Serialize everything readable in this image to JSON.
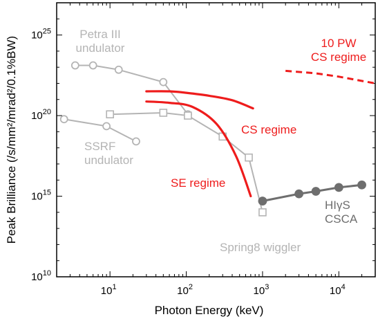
{
  "colors": {
    "gray": "#b4b4b4",
    "dark": "#6e6e6e",
    "red": "#ee1c1c",
    "axis": "#000000"
  },
  "chart_data": {
    "type": "line",
    "xlabel": "Photon Energy (keV)",
    "ylabel": "Peak Brilliance (/s/mm²/mrad²/0.1%BW)",
    "x_scale": "log",
    "y_scale": "log",
    "xlim": [
      2,
      30000
    ],
    "ylim": [
      10000000000.0,
      1e+27
    ],
    "x_ticks": [
      {
        "value": 10,
        "base": "10",
        "exp": "1"
      },
      {
        "value": 100,
        "base": "10",
        "exp": "2"
      },
      {
        "value": 1000,
        "base": "10",
        "exp": "3"
      },
      {
        "value": 10000,
        "base": "10",
        "exp": "4"
      }
    ],
    "y_ticks": [
      {
        "value": 10000000000.0,
        "base": "10",
        "exp": "10"
      },
      {
        "value": 1000000000000000.0,
        "base": "10",
        "exp": "15"
      },
      {
        "value": 1e+20,
        "base": "10",
        "exp": "20"
      },
      {
        "value": 1e+25,
        "base": "10",
        "exp": "25"
      }
    ],
    "grid": false,
    "series": [
      {
        "name": "Petra III undulator",
        "style": "gray-circle",
        "x": [
          3.5,
          6,
          13,
          50,
          105
        ],
        "y": [
          1.3e+23,
          1.3e+23,
          7e+22,
          1.2e+22,
          1.2e+20
        ]
      },
      {
        "name": "SSRF undulator",
        "style": "gray-circle",
        "x": [
          2.5,
          9,
          22
        ],
        "y": [
          6e+19,
          2.2e+19,
          2.5e+18
        ]
      },
      {
        "name": "Spring8 wiggler",
        "style": "gray-square",
        "x": [
          10,
          50,
          105,
          300,
          660,
          1000
        ],
        "y": [
          1.2e+20,
          1.5e+20,
          1e+20,
          5e+18,
          2.5e+17,
          100000000000000.0
        ]
      },
      {
        "name": "HIγS CSCA",
        "style": "dark-circle",
        "x": [
          1000,
          3000,
          5000,
          10000,
          20000
        ],
        "y": [
          500000000000000.0,
          1400000000000000.0,
          2000000000000000.0,
          3500000000000000.0,
          5000000000000000.0
        ]
      },
      {
        "name": "CS regime",
        "style": "red-line",
        "x": [
          30,
          60,
          100,
          200,
          400,
          750
        ],
        "y": [
          3.2e+21,
          3.2e+21,
          2.6e+21,
          1.7e+21,
          9e+20,
          2.8e+20
        ]
      },
      {
        "name": "SE regime",
        "style": "red-line",
        "x": [
          30,
          60,
          120,
          250,
          450,
          700
        ],
        "y": [
          7.5e+20,
          6.2e+20,
          3.5e+20,
          3e+19,
          3e+17,
          1000000000000000.0
        ]
      },
      {
        "name": "10 PW CS regime",
        "style": "red-dashed",
        "x": [
          2000,
          5000,
          10000,
          30000
        ],
        "y": [
          6e+22,
          4.2e+22,
          2.6e+22,
          1e+22
        ]
      }
    ],
    "annotations": [
      {
        "id": "petra",
        "lines": [
          "Petra III",
          "undulator"
        ],
        "color_key": "gray"
      },
      {
        "id": "ssrf",
        "lines": [
          "SSRF",
          "undulator"
        ],
        "color_key": "gray"
      },
      {
        "id": "spring8",
        "lines": [
          "Spring8 wiggler"
        ],
        "color_key": "gray"
      },
      {
        "id": "higs",
        "lines": [
          "HIγS",
          "CSCA"
        ],
        "color_key": "dark"
      },
      {
        "id": "cs",
        "lines": [
          "CS regime"
        ],
        "color_key": "red"
      },
      {
        "id": "se",
        "lines": [
          "SE regime"
        ],
        "color_key": "red"
      },
      {
        "id": "pw",
        "lines": [
          "10 PW",
          "CS regime"
        ],
        "color_key": "red"
      }
    ]
  }
}
